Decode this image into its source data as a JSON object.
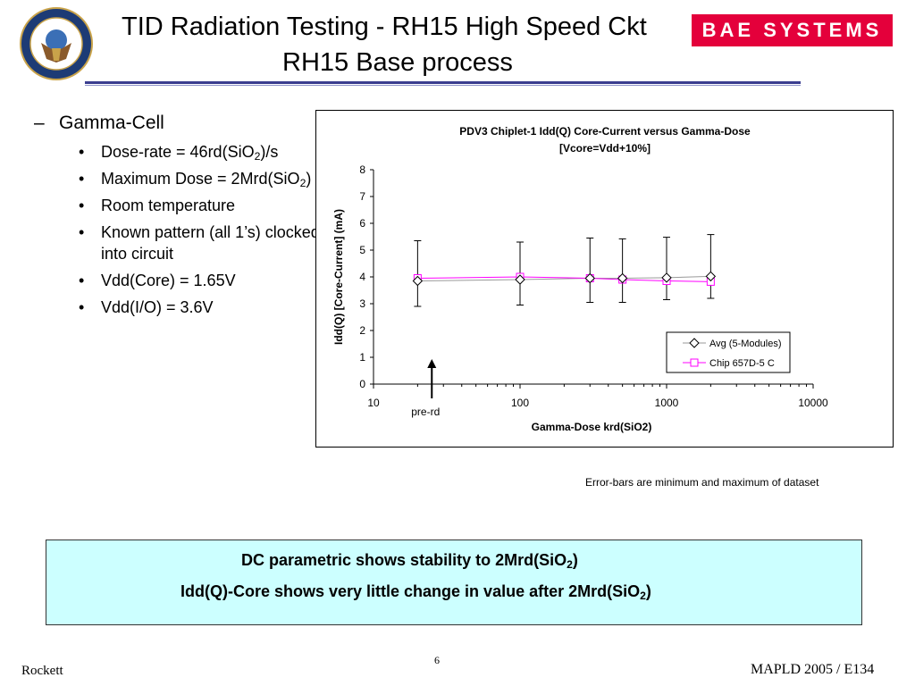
{
  "header": {
    "title_line1": "TID Radiation Testing - RH15 High Speed Ckt",
    "title_line2": "RH15 Base process",
    "logo_text": "BAE SYSTEMS",
    "seal_icon": "dtra-seal-icon",
    "logo_color": "#e4003b",
    "rule_color": "#3a3d8f"
  },
  "bullets": {
    "dash_mark": "–",
    "main": "Gamma-Cell",
    "bullet_mark": "•",
    "items": [
      {
        "pre": "Dose-rate = 46rd(SiO",
        "sub": "2",
        "post": ")/s"
      },
      {
        "pre": "Maximum Dose = 2Mrd(SiO",
        "sub": "2",
        "post": ")"
      },
      {
        "pre": "Room temperature",
        "sub": "",
        "post": ""
      },
      {
        "pre": "Known pattern (all 1’s) clocked into circuit",
        "sub": "",
        "post": ""
      },
      {
        "pre": "Vdd(Core) = 1.65V",
        "sub": "",
        "post": ""
      },
      {
        "pre": "Vdd(I/O) = 3.6V",
        "sub": "",
        "post": ""
      }
    ]
  },
  "chart_data": {
    "type": "scatter",
    "title": "PDV3 Chiplet-1 Idd(Q) Core-Current versus Gamma-Dose",
    "subtitle": "[Vcore=Vdd+10%]",
    "xlabel": "Gamma-Dose krd(SiO2)",
    "ylabel": "Idd(Q) [Core-Current] (mA)",
    "x_scale": "log",
    "xlim": [
      10,
      10000
    ],
    "ylim": [
      0,
      8
    ],
    "x_ticks": [
      "10",
      "100",
      "1000",
      "10000"
    ],
    "y_ticks": [
      "0",
      "1",
      "2",
      "3",
      "4",
      "5",
      "6",
      "7",
      "8"
    ],
    "grid": false,
    "legend_position": "bottom-right",
    "annotation": "pre-rd",
    "annotation_x": 25,
    "series": [
      {
        "name": "Avg (5-Modules)",
        "marker": "diamond",
        "color": "#000000",
        "line_color": "#999999",
        "x": [
          20,
          100,
          300,
          500,
          1000,
          2000
        ],
        "y": [
          3.85,
          3.9,
          3.95,
          3.95,
          3.97,
          4.02
        ],
        "err_low": [
          2.9,
          2.95,
          3.05,
          3.05,
          3.15,
          3.2
        ],
        "err_high": [
          5.35,
          5.3,
          5.45,
          5.42,
          5.48,
          5.58
        ]
      },
      {
        "name": "Chip 657D-5 C",
        "marker": "square",
        "color": "#ff00ff",
        "x": [
          20,
          100,
          300,
          500,
          1000,
          2000
        ],
        "y": [
          3.95,
          4.0,
          3.95,
          3.9,
          3.85,
          3.82
        ]
      }
    ]
  },
  "note": "Error-bars are minimum and maximum of dataset",
  "callout": {
    "line1_pre": "DC parametric shows stability to 2Mrd(SiO",
    "line1_sub": "2",
    "line1_post": ")",
    "line2_pre": "Idd(Q)-Core shows very little change in value after 2Mrd(SiO",
    "line2_sub": "2",
    "line2_post": ")",
    "background": "#ccffff"
  },
  "footer": {
    "left": "Rockett",
    "page": "6",
    "right": "MAPLD 2005 / E134"
  }
}
